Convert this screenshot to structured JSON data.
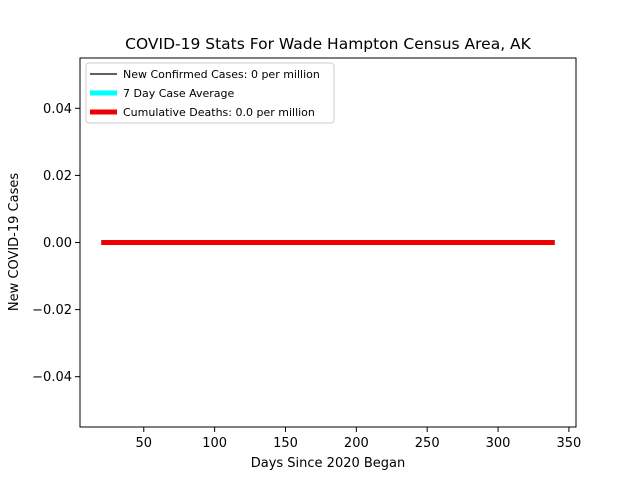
{
  "chart_data": {
    "type": "line",
    "title": "COVID-19 Stats For Wade Hampton Census Area, AK",
    "xlabel": "Days Since 2020 Began",
    "ylabel": "New COVID-19 Cases",
    "xlim": [
      5,
      355
    ],
    "ylim": [
      -0.055,
      0.055
    ],
    "xticks": [
      50,
      100,
      150,
      200,
      250,
      300,
      350
    ],
    "yticks": [
      -0.04,
      -0.02,
      0.0,
      0.02,
      0.04
    ],
    "xtick_labels": [
      "50",
      "100",
      "150",
      "200",
      "250",
      "300",
      "350"
    ],
    "ytick_labels": [
      "−0.04",
      "−0.02",
      "0.00",
      "0.02",
      "0.04"
    ],
    "legend_position": "top-left",
    "series": [
      {
        "name": "New Confirmed Cases: 0 per million",
        "color": "#000000",
        "width": "thin",
        "x": [
          20,
          340
        ],
        "y": [
          0,
          0
        ]
      },
      {
        "name": "7 Day Case Average",
        "color": "#00ffff",
        "width": "thick",
        "x": [
          20,
          340
        ],
        "y": [
          0,
          0
        ]
      },
      {
        "name": "Cumulative Deaths: 0.0 per million",
        "color": "#ee0000",
        "width": "thick",
        "x": [
          20,
          340
        ],
        "y": [
          0,
          0
        ]
      }
    ]
  }
}
